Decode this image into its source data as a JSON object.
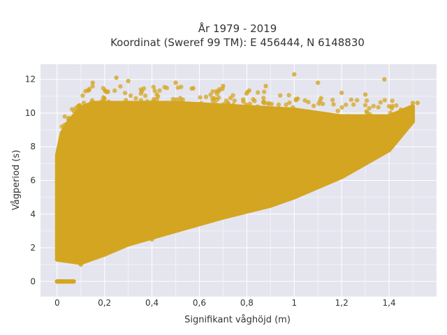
{
  "chart_data": {
    "type": "scatter",
    "title_line1": "År 1979 - 2019",
    "title_line2": "Koordinat (Sweref 99 TM): E 456444, N 6148830",
    "xlabel": "Signifikant våghöjd (m)",
    "ylabel": "Vågperiod (s)",
    "xlim": [
      -0.07,
      1.6
    ],
    "ylim": [
      -0.9,
      12.9
    ],
    "x_ticks": [
      0,
      0.2,
      0.4,
      0.6,
      0.8,
      1,
      1.2,
      1.4
    ],
    "x_tick_labels": [
      "0",
      "0,2",
      "0,4",
      "0,6",
      "0,8",
      "1",
      "1,2",
      "1,4"
    ],
    "y_ticks": [
      0,
      2,
      4,
      6,
      8,
      10,
      12
    ],
    "y_tick_labels": [
      "0",
      "2",
      "4",
      "6",
      "8",
      "10",
      "12"
    ],
    "grid": true,
    "marker_color": "#D4A520",
    "plot_background": "#E5E5EF",
    "series": [
      {
        "description_points": [
          {
            "x": 0.0,
            "y": 0.0
          },
          {
            "x": 0.02,
            "y": 0.0
          },
          {
            "x": 0.04,
            "y": 0.0
          },
          {
            "x": 0.06,
            "y": 0.0
          },
          {
            "x": 0.07,
            "y": 0.0
          },
          {
            "x": 0.0,
            "y": 5.9
          },
          {
            "x": 0.02,
            "y": 8.8
          },
          {
            "x": 0.05,
            "y": 9.7
          },
          {
            "x": 0.08,
            "y": 10.3
          },
          {
            "x": 0.12,
            "y": 11.3
          },
          {
            "x": 0.15,
            "y": 11.8
          },
          {
            "x": 0.25,
            "y": 12.1
          },
          {
            "x": 0.3,
            "y": 11.9
          },
          {
            "x": 0.5,
            "y": 11.8
          },
          {
            "x": 0.7,
            "y": 11.6
          },
          {
            "x": 0.88,
            "y": 11.6
          },
          {
            "x": 1.0,
            "y": 12.3
          },
          {
            "x": 1.1,
            "y": 11.8
          },
          {
            "x": 1.2,
            "y": 11.2
          },
          {
            "x": 1.3,
            "y": 11.1
          },
          {
            "x": 1.38,
            "y": 12.0
          },
          {
            "x": 1.4,
            "y": 10.4
          },
          {
            "x": 1.45,
            "y": 10.2
          },
          {
            "x": 1.5,
            "y": 10.6
          },
          {
            "x": 1.52,
            "y": 10.6
          },
          {
            "x": 0.1,
            "y": 1.0
          },
          {
            "x": 0.2,
            "y": 1.6
          },
          {
            "x": 0.4,
            "y": 2.5
          },
          {
            "x": 0.6,
            "y": 3.5
          },
          {
            "x": 0.8,
            "y": 4.2
          },
          {
            "x": 1.0,
            "y": 5.0
          },
          {
            "x": 1.2,
            "y": 6.2
          },
          {
            "x": 1.4,
            "y": 7.8
          }
        ]
      }
    ],
    "envelope": {
      "upper": [
        [
          0.0,
          7.5
        ],
        [
          0.02,
          8.8
        ],
        [
          0.05,
          9.5
        ],
        [
          0.1,
          10.3
        ],
        [
          0.15,
          10.6
        ],
        [
          0.5,
          10.6
        ],
        [
          1.0,
          10.2
        ],
        [
          1.2,
          9.8
        ],
        [
          1.4,
          9.8
        ],
        [
          1.5,
          10.4
        ]
      ],
      "lower": [
        [
          0.0,
          1.3
        ],
        [
          0.05,
          1.2
        ],
        [
          0.1,
          1.1
        ],
        [
          0.2,
          1.6
        ],
        [
          0.3,
          2.2
        ],
        [
          0.5,
          3.0
        ],
        [
          0.7,
          3.8
        ],
        [
          0.9,
          4.5
        ],
        [
          1.0,
          5.0
        ],
        [
          1.1,
          5.6
        ],
        [
          1.2,
          6.2
        ],
        [
          1.3,
          7.0
        ],
        [
          1.4,
          7.8
        ],
        [
          1.5,
          9.5
        ]
      ]
    }
  }
}
